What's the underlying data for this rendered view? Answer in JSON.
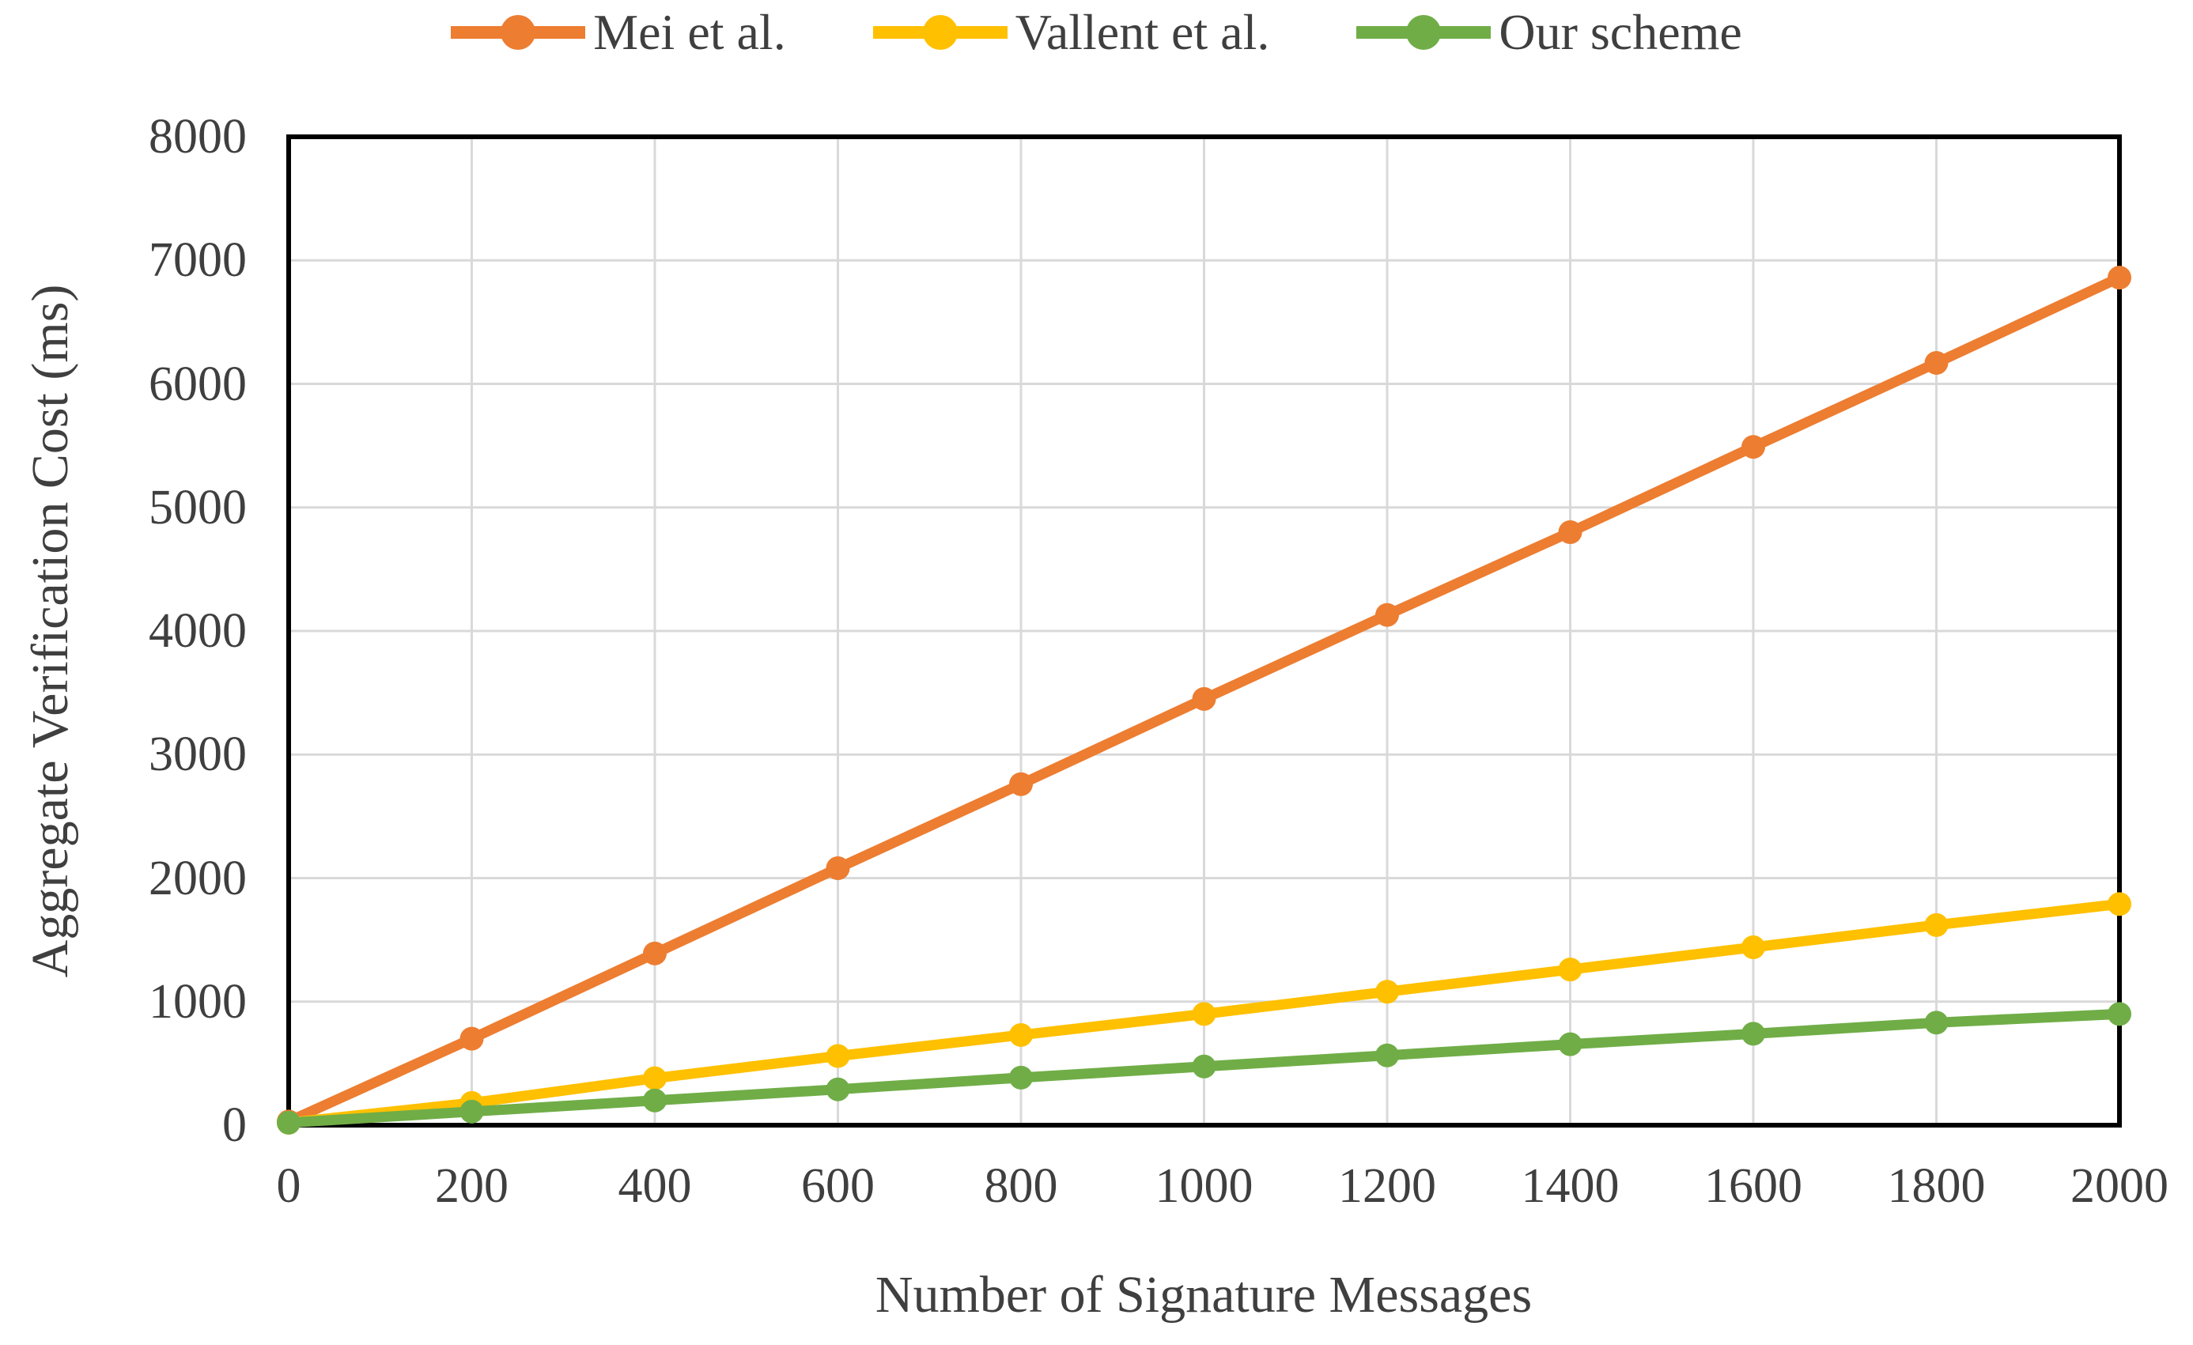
{
  "chart_data": {
    "type": "line",
    "title": "",
    "xlabel": "Number of Signature Messages",
    "ylabel": "Aggregate Verification Cost (ms)",
    "xlim": [
      0,
      2000
    ],
    "ylim": [
      0,
      8000
    ],
    "xticks": [
      0,
      200,
      400,
      600,
      800,
      1000,
      1200,
      1400,
      1600,
      1800,
      2000
    ],
    "yticks": [
      0,
      1000,
      2000,
      3000,
      4000,
      5000,
      6000,
      7000,
      8000
    ],
    "grid": true,
    "legend_position": "top-center",
    "categories": [
      0,
      200,
      400,
      600,
      800,
      1000,
      1200,
      1400,
      1600,
      1800,
      2000
    ],
    "series": [
      {
        "name": "Mei et al.",
        "color": "#ED7D31",
        "values": [
          30,
          700,
          1390,
          2080,
          2760,
          3450,
          4130,
          4800,
          5490,
          6170,
          6860
        ]
      },
      {
        "name": "Vallent et al.",
        "color": "#FFC000",
        "values": [
          20,
          180,
          380,
          560,
          730,
          900,
          1080,
          1260,
          1440,
          1620,
          1790
        ]
      },
      {
        "name": "Our scheme",
        "color": "#70AD47",
        "values": [
          20,
          110,
          200,
          290,
          385,
          475,
          565,
          655,
          740,
          830,
          900
        ]
      }
    ],
    "style": {
      "axis_color": "#000000",
      "gridline_color": "#D9D9D9",
      "text_color": "#3F3F3F",
      "background_color": "#FFFFFF"
    }
  }
}
